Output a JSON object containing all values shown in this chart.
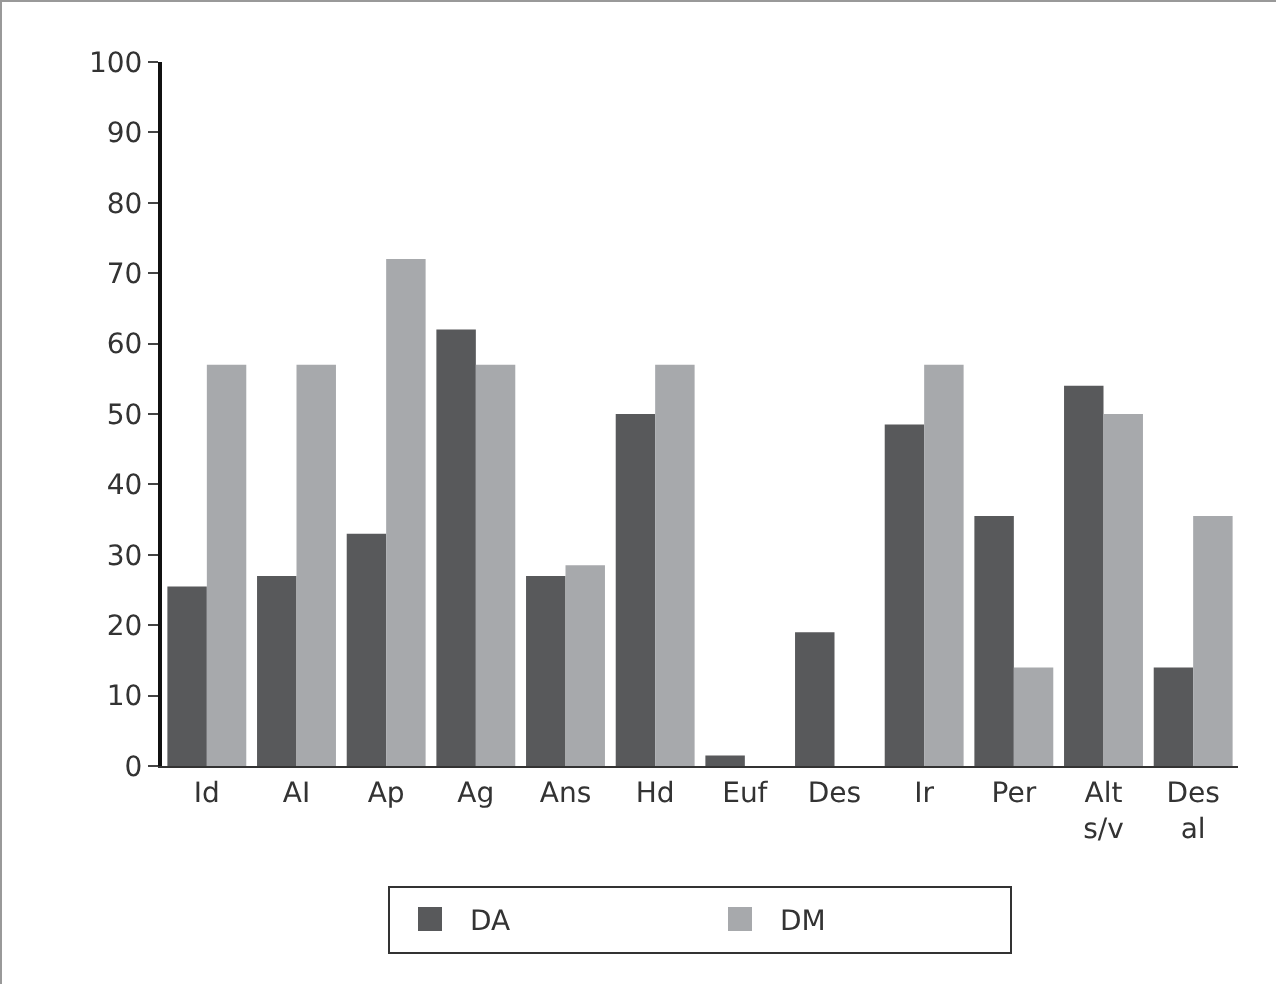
{
  "chart_data": {
    "type": "bar",
    "categories": [
      "Id",
      "AI",
      "Ap",
      "Ag",
      "Ans",
      "Hd",
      "Euf",
      "Des",
      "Ir",
      "Per",
      "Alt s/v",
      "Des al"
    ],
    "series": [
      {
        "name": "DA",
        "color": "#58595b",
        "values": [
          25.5,
          27,
          33,
          62,
          27,
          50,
          1.5,
          19,
          48.5,
          35.5,
          54,
          14
        ]
      },
      {
        "name": "DM",
        "color": "#a7a9ac",
        "values": [
          57,
          57,
          72,
          57,
          28.5,
          57,
          0,
          0,
          57,
          14,
          50,
          35.5
        ]
      }
    ],
    "ylim": [
      0,
      100
    ],
    "yticks": [
      0,
      10,
      20,
      30,
      40,
      50,
      60,
      70,
      80,
      90,
      100
    ],
    "grid": false,
    "legend": "bottom"
  }
}
